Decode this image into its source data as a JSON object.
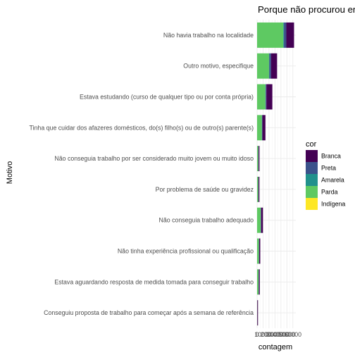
{
  "chart_data": {
    "type": "bar",
    "orientation": "horizontal",
    "stacked": true,
    "title": "Porque não procurou em",
    "xlabel": "contagem",
    "ylabel": "Motivo",
    "x_ticks": [
      "0",
      "10000",
      "20000",
      "30000",
      "40000",
      "50000",
      "60000"
    ],
    "xlim": [
      0,
      65000
    ],
    "grid": true,
    "legend_title": "cor",
    "legend_position": "right",
    "categories": [
      "Não havia trabalho na localidade",
      "Outro motivo, especifique",
      "Estava estudando (curso de qualquer tipo ou por conta própria)",
      "Tinha que cuidar dos afazeres domésticos, do(s) filho(s) ou de outro(s) parente(s)",
      "Não conseguia trabalho por ser considerado muito jovem ou muito idoso",
      "Por problema de saúde ou gravidez",
      "Não conseguia trabalho adequado",
      "Não tinha experiência profissional ou qualificação",
      "Estava aguardando resposta de medida tomada para conseguir trabalho",
      "Conseguiu proposta de trabalho para começar após a semana de referência"
    ],
    "series": [
      {
        "name": "Parda",
        "color": "#5EC962",
        "values": [
          44000,
          20000,
          14000,
          8000,
          2000,
          2000,
          6000,
          3000,
          2500,
          300
        ]
      },
      {
        "name": "Amarela",
        "color": "#21918C",
        "values": [
          1000,
          500,
          400,
          200,
          100,
          100,
          200,
          100,
          100,
          0
        ]
      },
      {
        "name": "Preta",
        "color": "#3B528B",
        "values": [
          4000,
          3000,
          1200,
          800,
          400,
          300,
          600,
          400,
          400,
          0
        ]
      },
      {
        "name": "Branca",
        "color": "#440154",
        "values": [
          13000,
          10000,
          10000,
          5000,
          1500,
          1500,
          3000,
          1800,
          1500,
          1200
        ]
      },
      {
        "name": "Indígena",
        "color": "#FDE725",
        "values": [
          0,
          0,
          0,
          0,
          0,
          0,
          0,
          0,
          0,
          0
        ]
      }
    ],
    "legend_order": [
      "Branca",
      "Preta",
      "Amarela",
      "Parda",
      "Indígena"
    ]
  }
}
